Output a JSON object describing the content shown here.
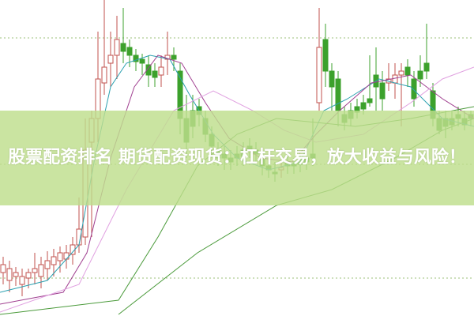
{
  "title": "股票配资排名 期货配资现货：杠杆交易，放大收益与风险！",
  "colors": {
    "up": "#c0504d",
    "down": "#3ca12c",
    "banner": "#bede8c",
    "ma_purple": "#a04090",
    "ma_cyan": "#2aa0b0",
    "ma_pink": "#e0a0e0",
    "ma_green": "#4a9a3a"
  }
}
